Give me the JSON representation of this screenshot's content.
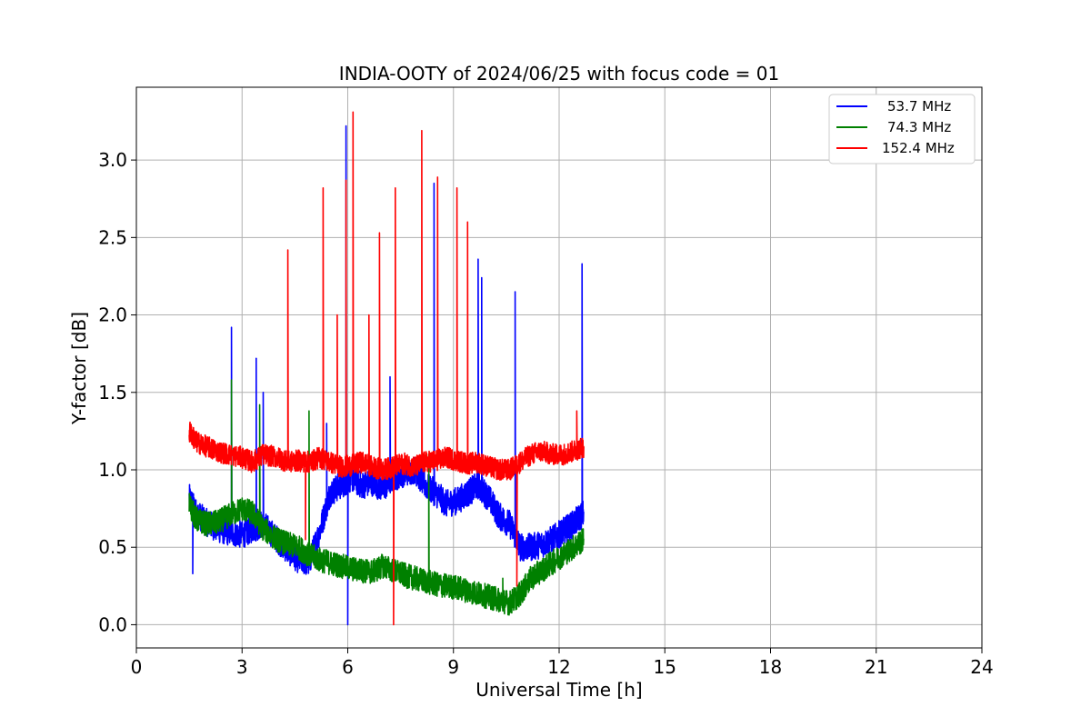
{
  "chart_data": {
    "type": "line",
    "title": "INDIA-OOTY of 2024/06/25 with focus code = 01",
    "xlabel": "Universal Time [h]",
    "ylabel": "Y-factor [dB]",
    "xlim": [
      0,
      24
    ],
    "ylim": [
      -0.15,
      3.47
    ],
    "xticks": [
      0,
      3,
      6,
      9,
      12,
      15,
      18,
      21,
      24
    ],
    "xtick_labels": [
      "0",
      "3",
      "6",
      "9",
      "12",
      "15",
      "18",
      "21",
      "24"
    ],
    "yticks": [
      0.0,
      0.5,
      1.0,
      1.5,
      2.0,
      2.5,
      3.0
    ],
    "ytick_labels": [
      "0.0",
      "0.5",
      "1.0",
      "1.5",
      "2.0",
      "2.5",
      "3.0"
    ],
    "grid": true,
    "legend_position": "top-right",
    "series": [
      {
        "name": "53.7 MHz",
        "color": "#0000ff",
        "x": [
          1.5,
          1.7,
          2.0,
          2.3,
          2.6,
          3.0,
          3.3,
          3.6,
          4.0,
          4.3,
          4.6,
          4.9,
          5.2,
          5.5,
          5.8,
          6.1,
          6.4,
          6.7,
          7.0,
          7.3,
          7.6,
          7.9,
          8.2,
          8.5,
          8.8,
          9.1,
          9.4,
          9.7,
          10.0,
          10.3,
          10.6,
          10.9,
          11.2,
          11.5,
          11.8,
          12.1,
          12.4,
          12.7
        ],
        "y": [
          0.82,
          0.72,
          0.66,
          0.62,
          0.6,
          0.58,
          0.62,
          0.65,
          0.55,
          0.48,
          0.42,
          0.4,
          0.6,
          0.85,
          0.9,
          0.95,
          0.9,
          0.92,
          0.88,
          0.95,
          0.98,
          1.0,
          0.9,
          0.85,
          0.78,
          0.8,
          0.85,
          0.9,
          0.82,
          0.7,
          0.65,
          0.5,
          0.5,
          0.52,
          0.55,
          0.6,
          0.65,
          0.72
        ],
        "spikes": [
          [
            1.6,
            0.33
          ],
          [
            2.7,
            1.92
          ],
          [
            3.4,
            1.72
          ],
          [
            3.6,
            1.5
          ],
          [
            5.4,
            1.3
          ],
          [
            5.95,
            3.22
          ],
          [
            6.0,
            0.0
          ],
          [
            7.2,
            1.6
          ],
          [
            8.45,
            2.85
          ],
          [
            9.7,
            2.36
          ],
          [
            9.8,
            2.24
          ],
          [
            10.75,
            2.15
          ],
          [
            12.65,
            2.33
          ]
        ]
      },
      {
        "name": "74.3 MHz",
        "color": "#008000",
        "x": [
          1.5,
          1.7,
          2.0,
          2.3,
          2.6,
          3.0,
          3.3,
          3.6,
          4.0,
          4.3,
          4.6,
          4.9,
          5.2,
          5.5,
          5.8,
          6.1,
          6.4,
          6.7,
          7.0,
          7.3,
          7.6,
          7.9,
          8.2,
          8.5,
          8.8,
          9.1,
          9.4,
          9.7,
          10.0,
          10.3,
          10.6,
          10.9,
          11.2,
          11.5,
          11.8,
          12.1,
          12.4,
          12.7
        ],
        "y": [
          0.78,
          0.68,
          0.65,
          0.66,
          0.7,
          0.75,
          0.72,
          0.62,
          0.55,
          0.52,
          0.5,
          0.45,
          0.42,
          0.4,
          0.38,
          0.36,
          0.35,
          0.34,
          0.38,
          0.35,
          0.32,
          0.3,
          0.28,
          0.26,
          0.25,
          0.24,
          0.22,
          0.2,
          0.18,
          0.16,
          0.14,
          0.2,
          0.3,
          0.35,
          0.4,
          0.45,
          0.5,
          0.55
        ],
        "spikes": [
          [
            2.7,
            1.58
          ],
          [
            3.5,
            1.42
          ],
          [
            4.9,
            1.38
          ],
          [
            8.3,
            1.1
          ],
          [
            10.4,
            0.3
          ]
        ]
      },
      {
        "name": "152.4 MHz",
        "color": "#ff0000",
        "x": [
          1.5,
          1.7,
          2.0,
          2.3,
          2.6,
          3.0,
          3.3,
          3.6,
          4.0,
          4.3,
          4.6,
          4.9,
          5.2,
          5.5,
          5.8,
          6.1,
          6.4,
          6.7,
          7.0,
          7.3,
          7.6,
          7.9,
          8.2,
          8.5,
          8.8,
          9.1,
          9.4,
          9.7,
          10.0,
          10.3,
          10.6,
          10.9,
          11.2,
          11.5,
          11.8,
          12.1,
          12.4,
          12.7
        ],
        "y": [
          1.25,
          1.18,
          1.15,
          1.12,
          1.1,
          1.08,
          1.05,
          1.1,
          1.08,
          1.05,
          1.06,
          1.05,
          1.08,
          1.05,
          1.02,
          1.03,
          1.05,
          1.02,
          1.0,
          1.02,
          1.04,
          1.02,
          1.05,
          1.06,
          1.08,
          1.06,
          1.04,
          1.05,
          1.02,
          1.0,
          1.0,
          1.05,
          1.1,
          1.12,
          1.1,
          1.1,
          1.12,
          1.15
        ],
        "spikes": [
          [
            4.3,
            2.42
          ],
          [
            4.8,
            0.55
          ],
          [
            5.3,
            2.82
          ],
          [
            5.7,
            2.0
          ],
          [
            5.95,
            2.87
          ],
          [
            6.15,
            3.31
          ],
          [
            6.6,
            2.0
          ],
          [
            6.9,
            2.53
          ],
          [
            7.3,
            0.0
          ],
          [
            7.35,
            2.82
          ],
          [
            8.1,
            3.19
          ],
          [
            8.55,
            2.89
          ],
          [
            9.1,
            2.82
          ],
          [
            9.4,
            2.6
          ],
          [
            10.8,
            0.25
          ],
          [
            12.5,
            1.38
          ]
        ]
      }
    ]
  }
}
